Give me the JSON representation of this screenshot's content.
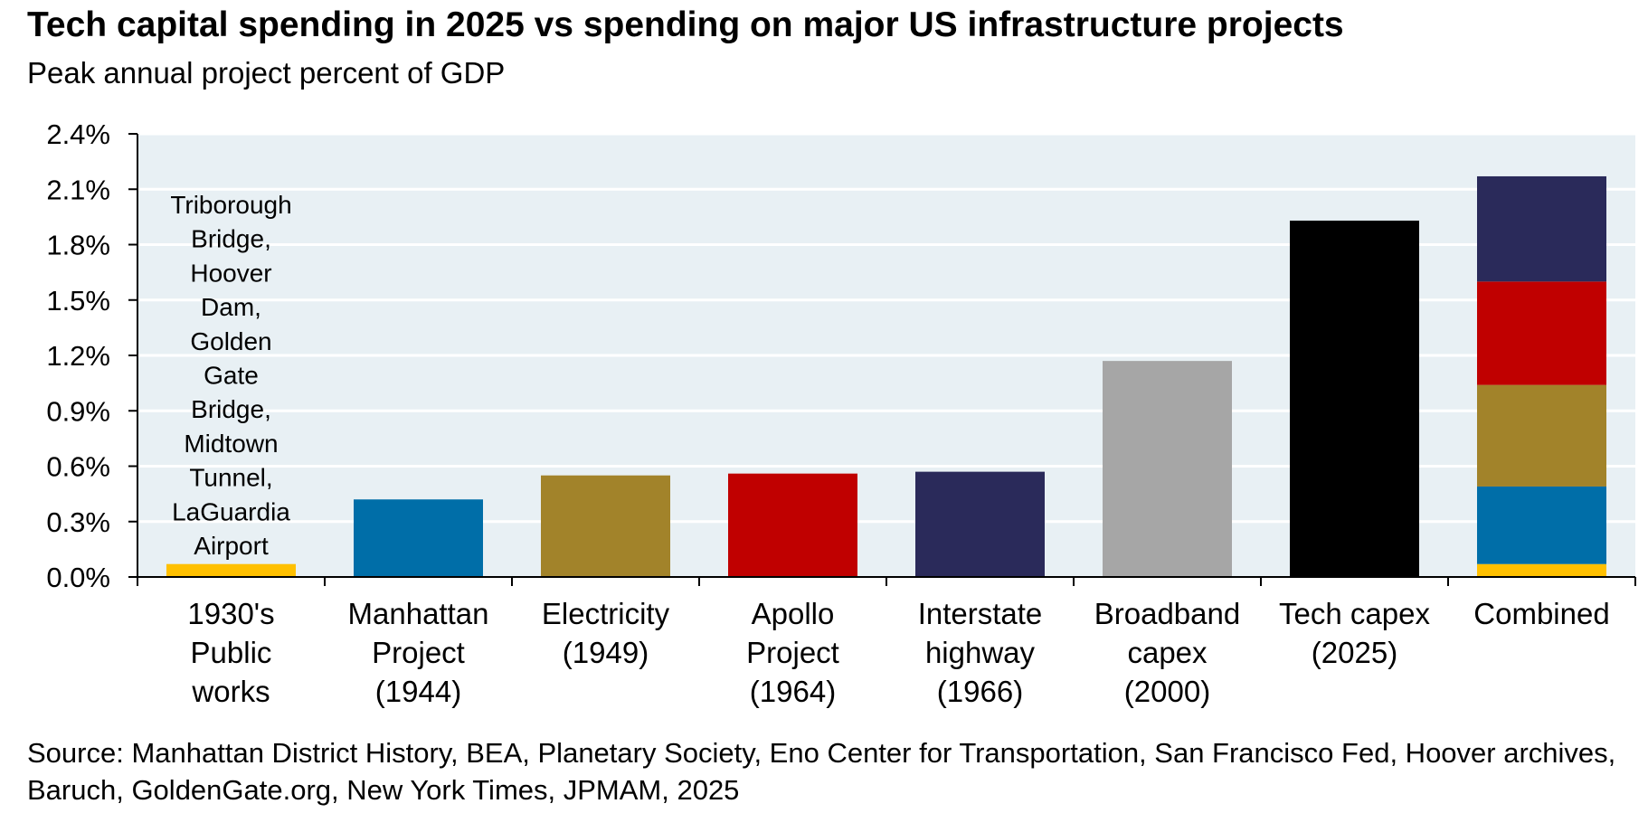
{
  "title": "Tech capital spending in 2025 vs spending on major US infrastructure projects",
  "subtitle": "Peak annual project percent of GDP",
  "source": "Source: Manhattan District History, BEA, Planetary Society, Eno Center for Transportation, San Francisco Fed, Hoover archives, Baruch, GoldenGate.org, New York Times, JPMAM, 2025",
  "colors": {
    "plot_background": "#e8f0f4",
    "gridline": "#ffffff",
    "axis": "#000000"
  },
  "chart_data": {
    "type": "bar",
    "title": "Tech capital spending in 2025 vs spending on major US infrastructure projects",
    "subtitle": "Peak annual project percent of GDP",
    "xlabel": "",
    "ylabel": "",
    "ylim": [
      0,
      2.4
    ],
    "yticks": [
      0,
      0.3,
      0.6,
      0.9,
      1.2,
      1.5,
      1.8,
      2.1,
      2.4
    ],
    "ytick_labels": [
      "0.0%",
      "0.3%",
      "0.6%",
      "0.9%",
      "1.2%",
      "1.5%",
      "1.8%",
      "2.1%",
      "2.4%"
    ],
    "grid": true,
    "legend": "none",
    "categories": [
      [
        "1930's",
        "Public",
        "works"
      ],
      [
        "Manhattan",
        "Project",
        "(1944)"
      ],
      [
        "Electricity",
        "(1949)"
      ],
      [
        "Apollo",
        "Project",
        "(1964)"
      ],
      [
        "Interstate",
        "highway",
        "(1966)"
      ],
      [
        "Broadband",
        "capex",
        "(2000)"
      ],
      [
        "Tech capex",
        "(2025)"
      ],
      [
        "Combined"
      ]
    ],
    "bars": [
      {
        "value": 0.07,
        "color": "#ffc000"
      },
      {
        "value": 0.42,
        "color": "#006ea8"
      },
      {
        "value": 0.55,
        "color": "#a2832a"
      },
      {
        "value": 0.56,
        "color": "#c00000"
      },
      {
        "value": 0.57,
        "color": "#2a2a5a"
      },
      {
        "value": 1.17,
        "color": "#a6a6a6"
      },
      {
        "value": 1.93,
        "color": "#000000"
      },
      {
        "stack": [
          {
            "value": 0.07,
            "color": "#ffc000"
          },
          {
            "value": 0.42,
            "color": "#006ea8"
          },
          {
            "value": 0.55,
            "color": "#a2832a"
          },
          {
            "value": 0.56,
            "color": "#c00000"
          },
          {
            "value": 0.57,
            "color": "#2a2a5a"
          }
        ]
      }
    ],
    "annotation": {
      "category_index": 0,
      "lines": [
        "Triborough",
        "Bridge,",
        "Hoover",
        "Dam,",
        "Golden",
        "Gate",
        "Bridge,",
        "Midtown",
        "Tunnel,",
        "LaGuardia",
        "Airport"
      ]
    }
  }
}
